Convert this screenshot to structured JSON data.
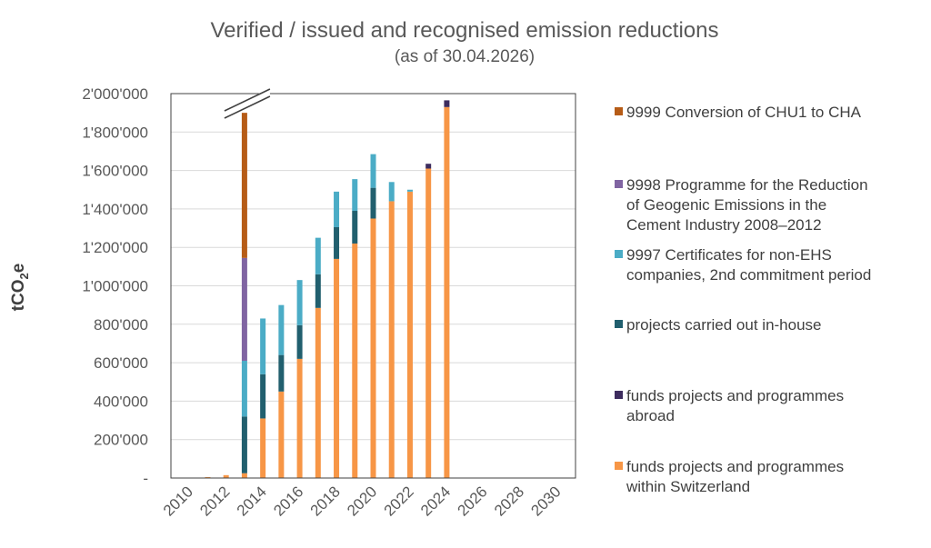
{
  "chart_data": {
    "type": "bar",
    "stacked": true,
    "title": "Verified / issued and recognised emission reductions",
    "subtitle": "(as of 30.04.2026)",
    "xlabel": "",
    "ylabel": "tCO",
    "ylabel_sub": "2",
    "ylabel_tail": "e",
    "xlim": [
      2009,
      2031
    ],
    "ylim": [
      0,
      2000000
    ],
    "x_tick_labels": [
      "2010",
      "2012",
      "2014",
      "2016",
      "2018",
      "2020",
      "2022",
      "2024",
      "2026",
      "2028",
      "2030"
    ],
    "y_tick_labels": [
      "-",
      "200'000",
      "400'000",
      "600'000",
      "800'000",
      "1'000'000",
      "1'200'000",
      "1'400'000",
      "1'600'000",
      "1'800'000",
      "2'000'000"
    ],
    "axis_break": "2013",
    "grid": true,
    "legend_position": "right",
    "x": [
      2011,
      2012,
      2013,
      2014,
      2015,
      2016,
      2017,
      2018,
      2019,
      2020,
      2021,
      2022,
      2023,
      2024
    ],
    "series": [
      {
        "name": "funds projects and programmes within Switzerland",
        "color": "#F79646",
        "values": [
          5000,
          15000,
          25000,
          310000,
          450000,
          620000,
          885000,
          1140000,
          1220000,
          1350000,
          1440000,
          1490000,
          1610000,
          1930000
        ]
      },
      {
        "name": "funds projects and programmes abroad",
        "color": "#3D2C5E",
        "values": [
          0,
          0,
          0,
          0,
          0,
          0,
          0,
          0,
          0,
          0,
          0,
          0,
          25000,
          35000
        ]
      },
      {
        "name": "projects carried out in-house",
        "color": "#215F6E",
        "values": [
          0,
          0,
          295000,
          230000,
          190000,
          175000,
          175000,
          165000,
          170000,
          160000,
          0,
          0,
          0,
          0
        ]
      },
      {
        "name": "9997 Certificates for non-EHS companies, 2nd commitment period",
        "color": "#4BACC6",
        "values": [
          0,
          0,
          290000,
          290000,
          260000,
          235000,
          190000,
          185000,
          165000,
          175000,
          100000,
          10000,
          0,
          0
        ]
      },
      {
        "name": "9998 Programme for the Reduction of Geogenic Emissions in the Cement Industry 2008–2012",
        "color": "#8064A2",
        "values": [
          0,
          0,
          535000,
          0,
          0,
          0,
          0,
          0,
          0,
          0,
          0,
          0,
          0,
          0
        ]
      },
      {
        "name": "9999 Conversion of CHU1 to CHA",
        "color": "#B65C17",
        "values": [
          0,
          0,
          755000,
          0,
          0,
          0,
          0,
          0,
          0,
          0,
          0,
          0,
          0,
          0
        ]
      }
    ],
    "legend_order": [
      5,
      4,
      3,
      2,
      1,
      0
    ],
    "legend_lines": [
      [
        "9999 Conversion of CHU1 to CHA"
      ],
      [
        "9998 Programme for the Reduction",
        "of Geogenic Emissions in the",
        "Cement Industry 2008–2012"
      ],
      [
        "9997 Certificates for non-EHS",
        "companies, 2nd commitment period"
      ],
      [
        "projects carried out in-house"
      ],
      [
        "funds projects and programmes",
        "abroad"
      ],
      [
        "funds projects and programmes",
        "within Switzerland"
      ]
    ]
  }
}
